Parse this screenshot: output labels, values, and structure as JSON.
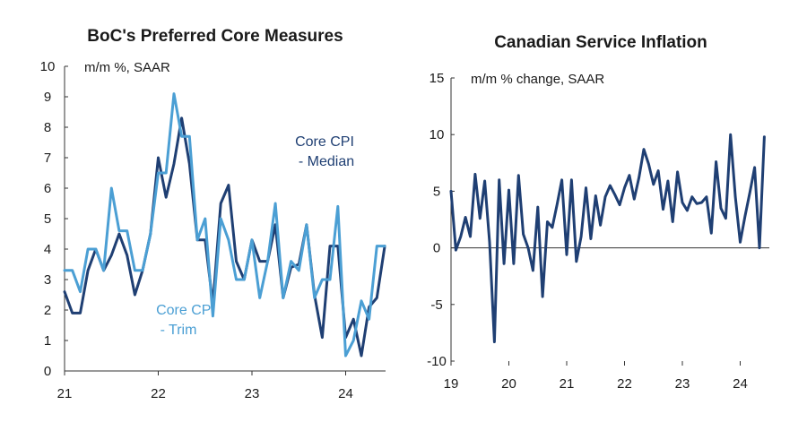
{
  "chart_data": [
    {
      "type": "line",
      "title": "BoC's Preferred Core Measures",
      "ylabel": "m/m %, SAAR",
      "ylim": [
        0,
        10
      ],
      "yticks": [
        "0",
        "1",
        "2",
        "3",
        "4",
        "5",
        "6",
        "7",
        "8",
        "9",
        "10"
      ],
      "xticks": [
        "21",
        "22",
        "23",
        "24"
      ],
      "xlim": [
        2021.0,
        2024.42
      ],
      "grid": false,
      "series": [
        {
          "name": "Core CPI - Median",
          "color": "#1f3f73",
          "x": [
            2021.0,
            2021.083,
            2021.167,
            2021.25,
            2021.333,
            2021.417,
            2021.5,
            2021.583,
            2021.667,
            2021.75,
            2021.833,
            2021.917,
            2022.0,
            2022.083,
            2022.167,
            2022.25,
            2022.333,
            2022.417,
            2022.5,
            2022.583,
            2022.667,
            2022.75,
            2022.833,
            2022.917,
            2023.0,
            2023.083,
            2023.167,
            2023.25,
            2023.333,
            2023.417,
            2023.5,
            2023.583,
            2023.667,
            2023.75,
            2023.833,
            2023.917,
            2024.0,
            2024.083,
            2024.167,
            2024.25,
            2024.333,
            2024.417
          ],
          "values": [
            2.6,
            1.9,
            1.9,
            3.3,
            4.0,
            3.3,
            3.8,
            4.5,
            3.8,
            2.5,
            3.3,
            4.5,
            7.0,
            5.7,
            6.8,
            8.3,
            6.8,
            4.3,
            4.3,
            2.2,
            5.5,
            6.1,
            3.6,
            3.0,
            4.3,
            3.6,
            3.6,
            4.8,
            2.4,
            3.4,
            3.5,
            4.8,
            2.5,
            1.1,
            4.1,
            4.1,
            1.1,
            1.7,
            0.5,
            2.1,
            2.4,
            4.1
          ]
        },
        {
          "name": "Core CPI - Trim",
          "color": "#4b9fd4",
          "x": [
            2021.0,
            2021.083,
            2021.167,
            2021.25,
            2021.333,
            2021.417,
            2021.5,
            2021.583,
            2021.667,
            2021.75,
            2021.833,
            2021.917,
            2022.0,
            2022.083,
            2022.167,
            2022.25,
            2022.333,
            2022.417,
            2022.5,
            2022.583,
            2022.667,
            2022.75,
            2022.833,
            2022.917,
            2023.0,
            2023.083,
            2023.167,
            2023.25,
            2023.333,
            2023.417,
            2023.5,
            2023.583,
            2023.667,
            2023.75,
            2023.833,
            2023.917,
            2024.0,
            2024.083,
            2024.167,
            2024.25,
            2024.333,
            2024.417
          ],
          "values": [
            3.3,
            3.3,
            2.6,
            4.0,
            4.0,
            3.3,
            6.0,
            4.6,
            4.6,
            3.3,
            3.3,
            4.5,
            6.5,
            6.5,
            9.1,
            7.7,
            7.7,
            4.3,
            5.0,
            1.8,
            5.0,
            4.3,
            3.0,
            3.0,
            4.3,
            2.4,
            3.6,
            5.5,
            2.4,
            3.6,
            3.3,
            4.8,
            2.4,
            3.0,
            3.0,
            5.4,
            0.5,
            1.0,
            2.3,
            1.7,
            4.1,
            4.1
          ]
        }
      ],
      "annotations": [
        {
          "lines": [
            "Core CPI",
            "- Median"
          ],
          "series": 0
        },
        {
          "lines": [
            "Core CPI",
            "- Trim"
          ],
          "series": 1
        }
      ]
    },
    {
      "type": "line",
      "title": "Canadian Service Inflation",
      "ylabel": "m/m % change, SAAR",
      "ylim": [
        -10,
        15
      ],
      "yticks": [
        "-10",
        "-5",
        "0",
        "5",
        "10",
        "15"
      ],
      "xticks": [
        "19",
        "20",
        "21",
        "22",
        "23",
        "24"
      ],
      "xlim": [
        2019.0,
        2024.42
      ],
      "grid": false,
      "series": [
        {
          "color": "#1f3f73",
          "x": [
            2019.0,
            2019.083,
            2019.167,
            2019.25,
            2019.333,
            2019.417,
            2019.5,
            2019.583,
            2019.667,
            2019.75,
            2019.833,
            2019.917,
            2020.0,
            2020.083,
            2020.167,
            2020.25,
            2020.333,
            2020.417,
            2020.5,
            2020.583,
            2020.667,
            2020.75,
            2020.833,
            2020.917,
            2021.0,
            2021.083,
            2021.167,
            2021.25,
            2021.333,
            2021.417,
            2021.5,
            2021.583,
            2021.667,
            2021.75,
            2021.833,
            2021.917,
            2022.0,
            2022.083,
            2022.167,
            2022.25,
            2022.333,
            2022.417,
            2022.5,
            2022.583,
            2022.667,
            2022.75,
            2022.833,
            2022.917,
            2023.0,
            2023.083,
            2023.167,
            2023.25,
            2023.333,
            2023.417,
            2023.5,
            2023.583,
            2023.667,
            2023.75,
            2023.833,
            2023.917,
            2024.0,
            2024.083,
            2024.167,
            2024.25,
            2024.333,
            2024.417
          ],
          "values": [
            5.0,
            -0.2,
            1.0,
            2.7,
            1.0,
            6.5,
            2.6,
            5.9,
            0.5,
            -8.3,
            6.0,
            -1.4,
            5.1,
            -1.4,
            6.4,
            1.2,
            0.0,
            -2.0,
            3.6,
            -4.3,
            2.3,
            1.8,
            3.8,
            6.0,
            -0.6,
            6.0,
            -1.2,
            1.0,
            5.3,
            0.8,
            4.6,
            2.0,
            4.5,
            5.5,
            4.7,
            3.8,
            5.3,
            6.4,
            4.3,
            6.2,
            8.7,
            7.4,
            5.6,
            6.8,
            3.4,
            5.9,
            2.3,
            6.7,
            4.0,
            3.3,
            4.5,
            3.9,
            4.0,
            4.5,
            1.3,
            7.6,
            3.5,
            2.6,
            10.0,
            4.5,
            0.5,
            2.8,
            4.9,
            7.1,
            0.0,
            9.8
          ]
        }
      ]
    }
  ]
}
